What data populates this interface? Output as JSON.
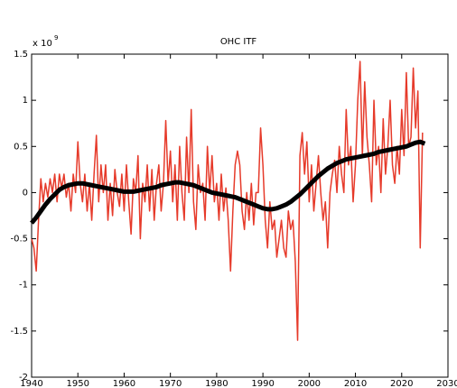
{
  "chart_data": {
    "type": "line",
    "title": "OHC ITF",
    "exponent_label": {
      "base": "x 10",
      "power": "9"
    },
    "xlim": [
      1940,
      2030
    ],
    "xticks": [
      1940,
      1950,
      1960,
      1970,
      1980,
      1990,
      2000,
      2010,
      2020,
      2030
    ],
    "ylim": [
      -2,
      1.5
    ],
    "yticks": [
      -2,
      -1.5,
      -1,
      -0.5,
      0,
      0.5,
      1,
      1.5
    ],
    "grid": false,
    "series": [
      {
        "color": "#e63a2a",
        "width": 1.5,
        "x": [
          1940,
          1940.5,
          1941,
          1941.5,
          1942,
          1942.5,
          1943,
          1943.5,
          1944,
          1944.5,
          1945,
          1945.5,
          1946,
          1946.5,
          1947,
          1947.5,
          1948,
          1948.5,
          1949,
          1949.5,
          1950,
          1950.5,
          1951,
          1951.5,
          1952,
          1952.5,
          1953,
          1953.5,
          1954,
          1954.5,
          1955,
          1955.5,
          1956,
          1956.5,
          1957,
          1957.5,
          1958,
          1958.5,
          1959,
          1959.5,
          1960,
          1960.5,
          1961,
          1961.5,
          1962,
          1962.5,
          1963,
          1963.5,
          1964,
          1964.5,
          1965,
          1965.5,
          1966,
          1966.5,
          1967,
          1967.5,
          1968,
          1968.5,
          1969,
          1969.5,
          1970,
          1970.5,
          1971,
          1971.5,
          1972,
          1972.5,
          1973,
          1973.5,
          1974,
          1974.5,
          1975,
          1975.5,
          1976,
          1976.5,
          1977,
          1977.5,
          1978,
          1978.5,
          1979,
          1979.5,
          1980,
          1980.5,
          1981,
          1981.5,
          1982,
          1982.5,
          1983,
          1983.5,
          1984,
          1984.5,
          1985,
          1985.5,
          1986,
          1986.5,
          1987,
          1987.5,
          1988,
          1988.5,
          1989,
          1989.5,
          1990,
          1990.5,
          1991,
          1991.5,
          1992,
          1992.5,
          1993,
          1993.5,
          1994,
          1994.5,
          1995,
          1995.5,
          1996,
          1996.5,
          1997,
          1997.5,
          1998,
          1998.5,
          1999,
          1999.5,
          2000,
          2000.5,
          2001,
          2001.5,
          2002,
          2002.5,
          2003,
          2003.5,
          2004,
          2004.5,
          2005,
          2005.5,
          2006,
          2006.5,
          2007,
          2007.5,
          2008,
          2008.5,
          2009,
          2009.5,
          2010,
          2010.5,
          2011,
          2011.5,
          2012,
          2012.5,
          2013,
          2013.5,
          2014,
          2014.5,
          2015,
          2015.5,
          2016,
          2016.5,
          2017,
          2017.5,
          2018,
          2018.5,
          2019,
          2019.5,
          2020,
          2020.5,
          2021,
          2021.5,
          2022,
          2022.5,
          2023,
          2023.5,
          2024,
          2024.5
        ],
        "values": [
          -0.5,
          -0.6,
          -0.85,
          -0.3,
          0.15,
          -0.1,
          0.1,
          -0.05,
          0.15,
          0,
          0.2,
          -0.1,
          0.2,
          0.05,
          0.2,
          -0.05,
          0.1,
          -0.2,
          0.2,
          0,
          0.55,
          0.1,
          -0.1,
          0.2,
          -0.2,
          0.1,
          -0.3,
          0.2,
          0.62,
          -0.1,
          0.3,
          0,
          0.3,
          -0.3,
          0.1,
          -0.25,
          0.25,
          0,
          -0.15,
          0.2,
          -0.2,
          0.3,
          -0.1,
          -0.45,
          0.15,
          0,
          0.4,
          -0.5,
          0.1,
          -0.1,
          0.3,
          -0.2,
          0.25,
          -0.3,
          0.1,
          0.3,
          -0.2,
          0.1,
          0.78,
          0.1,
          0.45,
          -0.1,
          0.3,
          -0.3,
          0.5,
          0,
          -0.3,
          0.6,
          0,
          0.9,
          -0.1,
          -0.4,
          0.3,
          0,
          0.1,
          -0.3,
          0.5,
          0,
          0.4,
          -0.1,
          0.1,
          -0.3,
          0.2,
          -0.2,
          0.05,
          -0.3,
          -0.85,
          -0.2,
          0.3,
          0.45,
          0.3,
          -0.2,
          -0.4,
          0,
          -0.3,
          0.1,
          -0.35,
          0,
          0,
          0.7,
          0.3,
          -0.3,
          -0.6,
          -0.1,
          -0.4,
          -0.3,
          -0.7,
          -0.5,
          -0.3,
          -0.6,
          -0.7,
          -0.2,
          -0.4,
          -0.3,
          -0.75,
          -1.6,
          0.4,
          0.65,
          0.2,
          0.55,
          -0.1,
          0.3,
          -0.2,
          0.1,
          0.4,
          0,
          -0.3,
          -0.1,
          -0.6,
          0,
          0.2,
          0.35,
          0,
          0.5,
          0.2,
          0,
          0.9,
          0.3,
          0.5,
          -0.1,
          0.3,
          1,
          1.42,
          0.4,
          1.2,
          0.6,
          0.3,
          -0.1,
          1,
          0.3,
          0.5,
          0,
          0.8,
          0.2,
          0.5,
          1,
          0.3,
          0.1,
          0.5,
          0.2,
          0.9,
          0.4,
          1.3,
          0.5,
          0.6,
          1.35,
          0.7,
          1.1,
          -0.6,
          0.65
        ]
      },
      {
        "color": "#000000",
        "width": 5,
        "x": [
          1940,
          1941,
          1942,
          1943,
          1944,
          1945,
          1946,
          1947,
          1948,
          1949,
          1950,
          1951,
          1952,
          1953,
          1954,
          1955,
          1956,
          1957,
          1958,
          1959,
          1960,
          1961,
          1962,
          1963,
          1964,
          1965,
          1966,
          1967,
          1968,
          1969,
          1970,
          1971,
          1972,
          1973,
          1974,
          1975,
          1976,
          1977,
          1978,
          1979,
          1980,
          1981,
          1982,
          1983,
          1984,
          1985,
          1986,
          1987,
          1988,
          1989,
          1990,
          1991,
          1992,
          1993,
          1994,
          1995,
          1996,
          1997,
          1998,
          1999,
          2000,
          2001,
          2002,
          2003,
          2004,
          2005,
          2006,
          2007,
          2008,
          2009,
          2010,
          2011,
          2012,
          2013,
          2014,
          2015,
          2016,
          2017,
          2018,
          2019,
          2020,
          2021,
          2022,
          2023,
          2024,
          2025
        ],
        "values": [
          -0.33,
          -0.27,
          -0.2,
          -0.13,
          -0.07,
          -0.02,
          0.03,
          0.06,
          0.08,
          0.09,
          0.1,
          0.1,
          0.09,
          0.08,
          0.07,
          0.06,
          0.05,
          0.04,
          0.03,
          0.02,
          0.01,
          0.01,
          0.01,
          0.02,
          0.03,
          0.04,
          0.05,
          0.06,
          0.08,
          0.09,
          0.1,
          0.11,
          0.11,
          0.1,
          0.09,
          0.08,
          0.06,
          0.04,
          0.02,
          0,
          -0.01,
          -0.02,
          -0.03,
          -0.04,
          -0.05,
          -0.07,
          -0.09,
          -0.11,
          -0.13,
          -0.15,
          -0.17,
          -0.18,
          -0.18,
          -0.17,
          -0.15,
          -0.13,
          -0.1,
          -0.06,
          -0.02,
          0.03,
          0.08,
          0.13,
          0.18,
          0.22,
          0.26,
          0.29,
          0.32,
          0.34,
          0.36,
          0.37,
          0.38,
          0.39,
          0.4,
          0.41,
          0.42,
          0.44,
          0.45,
          0.46,
          0.47,
          0.48,
          0.49,
          0.5,
          0.52,
          0.54,
          0.55,
          0.53
        ]
      }
    ]
  }
}
